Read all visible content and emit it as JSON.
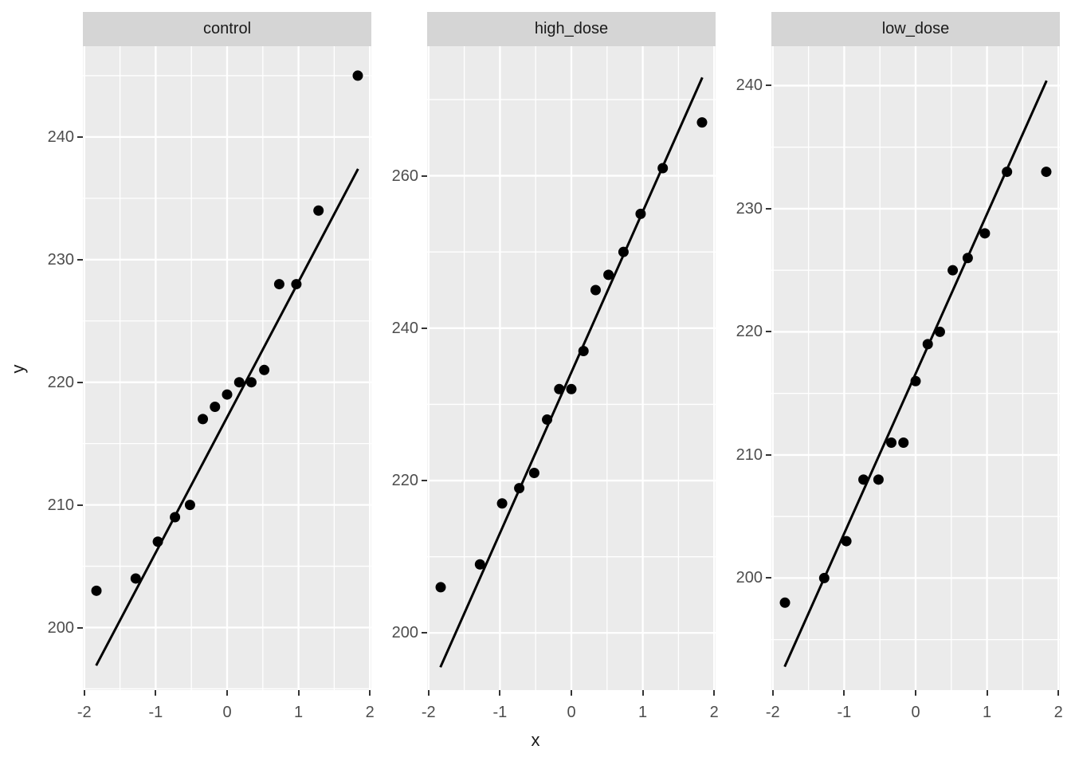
{
  "chart_data": {
    "type": "scatter",
    "title": "",
    "xlabel": "x",
    "ylabel": "y",
    "legend": "none",
    "grid": "major-and-minor-white-on-grey",
    "x_domain": [
      -2.02,
      2.02
    ],
    "x_major_ticks": [
      -2,
      -1,
      0,
      1,
      2
    ],
    "x_tick_labels": [
      "-2",
      "-1",
      "0",
      "1",
      "2"
    ],
    "x_minor_ticks": [
      -1.5,
      -0.5,
      0.5,
      1.5
    ],
    "x": [
      -1.83,
      -1.28,
      -0.97,
      -0.73,
      -0.52,
      -0.34,
      -0.17,
      0,
      0.17,
      0.34,
      0.52,
      0.73,
      0.97,
      1.28,
      1.83
    ],
    "facets": [
      {
        "label": "control",
        "y_domain": [
          194.9,
          247.4
        ],
        "y_major_ticks": [
          200,
          210,
          220,
          230,
          240
        ],
        "y_tick_labels": [
          "200",
          "210",
          "220",
          "230",
          "240"
        ],
        "y_minor_ticks": [
          195,
          205,
          215,
          225,
          235,
          245
        ],
        "y_values": [
          203,
          204,
          207,
          209,
          210,
          217,
          218,
          219,
          220,
          220,
          221,
          228,
          228,
          234,
          245
        ],
        "line": {
          "x1": -1.834,
          "y1": 196.9,
          "x2": 1.834,
          "y2": 237.4
        }
      },
      {
        "label": "high_dose",
        "y_domain": [
          192.5,
          277.0
        ],
        "y_major_ticks": [
          200,
          220,
          240,
          260
        ],
        "y_tick_labels": [
          "200",
          "220",
          "240",
          "260"
        ],
        "y_minor_ticks": [
          210,
          230,
          250,
          270
        ],
        "y_values": [
          206,
          209,
          217,
          219,
          221,
          228,
          232,
          232,
          237,
          245,
          247,
          250,
          255,
          261,
          267
        ],
        "line": {
          "x1": -1.834,
          "y1": 195.5,
          "x2": 1.834,
          "y2": 272.9
        }
      },
      {
        "label": "low_dose",
        "y_domain": [
          190.9,
          243.2
        ],
        "y_major_ticks": [
          200,
          210,
          220,
          230,
          240
        ],
        "y_tick_labels": [
          "200",
          "210",
          "220",
          "230",
          "240"
        ],
        "y_minor_ticks": [
          195,
          205,
          215,
          225,
          235
        ],
        "y_values": [
          198,
          200,
          203,
          208,
          208,
          211,
          211,
          216,
          219,
          220,
          225,
          226,
          228,
          233,
          233
        ],
        "line": {
          "x1": -1.834,
          "y1": 192.8,
          "x2": 1.834,
          "y2": 240.4
        }
      }
    ],
    "colors": {
      "panel_background": "#ebebeb",
      "strip_background": "#d5d5d5",
      "gridline": "#ffffff",
      "point": "#000000",
      "line": "#000000",
      "tick_label": "#4d4d4d",
      "axis_title": "#1a1a1a",
      "tick_mark": "#333333"
    }
  }
}
